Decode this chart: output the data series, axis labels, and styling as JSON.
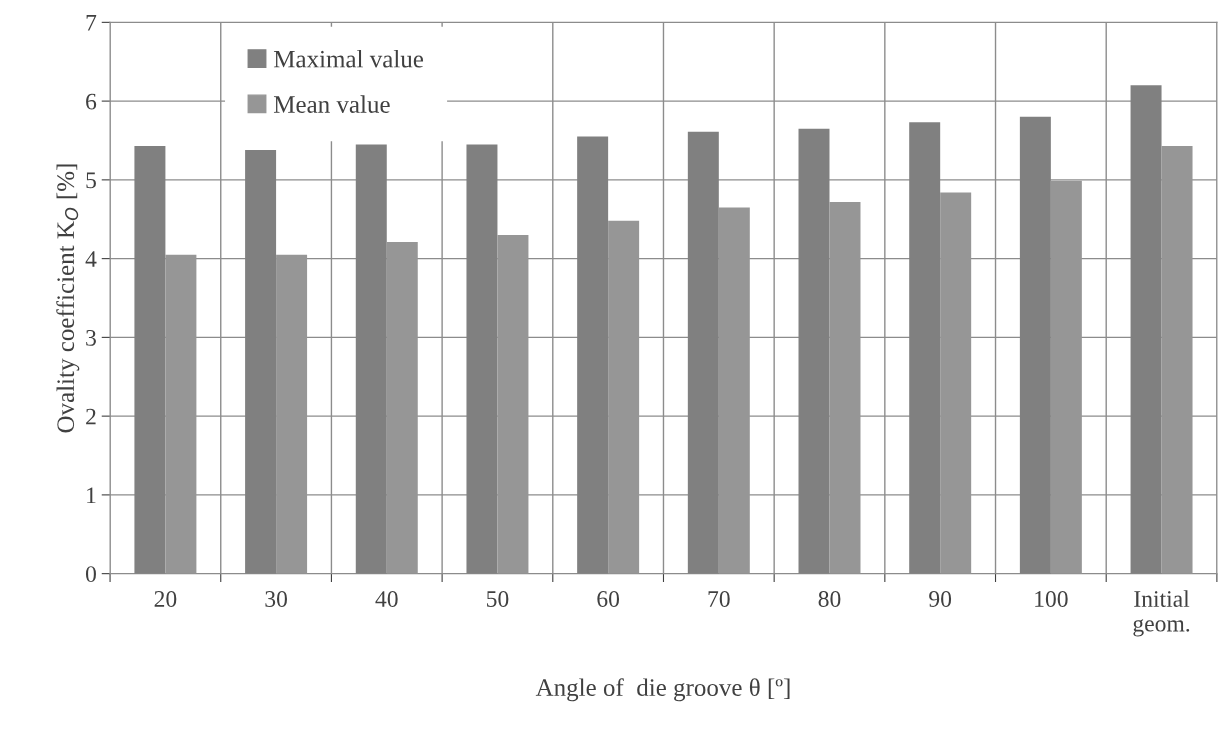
{
  "chart_data": {
    "type": "bar",
    "xlabel": "Angle of  die groove θ [º]",
    "ylabel": "Ovality coefficient K$_{O}$ [%]",
    "categories": [
      "20",
      "30",
      "40",
      "50",
      "60",
      "70",
      "80",
      "90",
      "100",
      "Initial\ngeom."
    ],
    "series": [
      {
        "name": "Maximal value",
        "color": "#808080",
        "values": [
          5.43,
          5.38,
          5.45,
          5.45,
          5.55,
          5.61,
          5.65,
          5.73,
          5.8,
          6.2
        ]
      },
      {
        "name": "Mean value",
        "color": "#969696",
        "values": [
          4.05,
          4.05,
          4.21,
          4.3,
          4.48,
          4.65,
          4.72,
          4.84,
          4.99,
          5.43
        ]
      }
    ],
    "ylim": [
      0,
      7
    ],
    "yticks": [
      0,
      1,
      2,
      3,
      4,
      5,
      6,
      7
    ],
    "grid": true,
    "legend": "top left"
  }
}
